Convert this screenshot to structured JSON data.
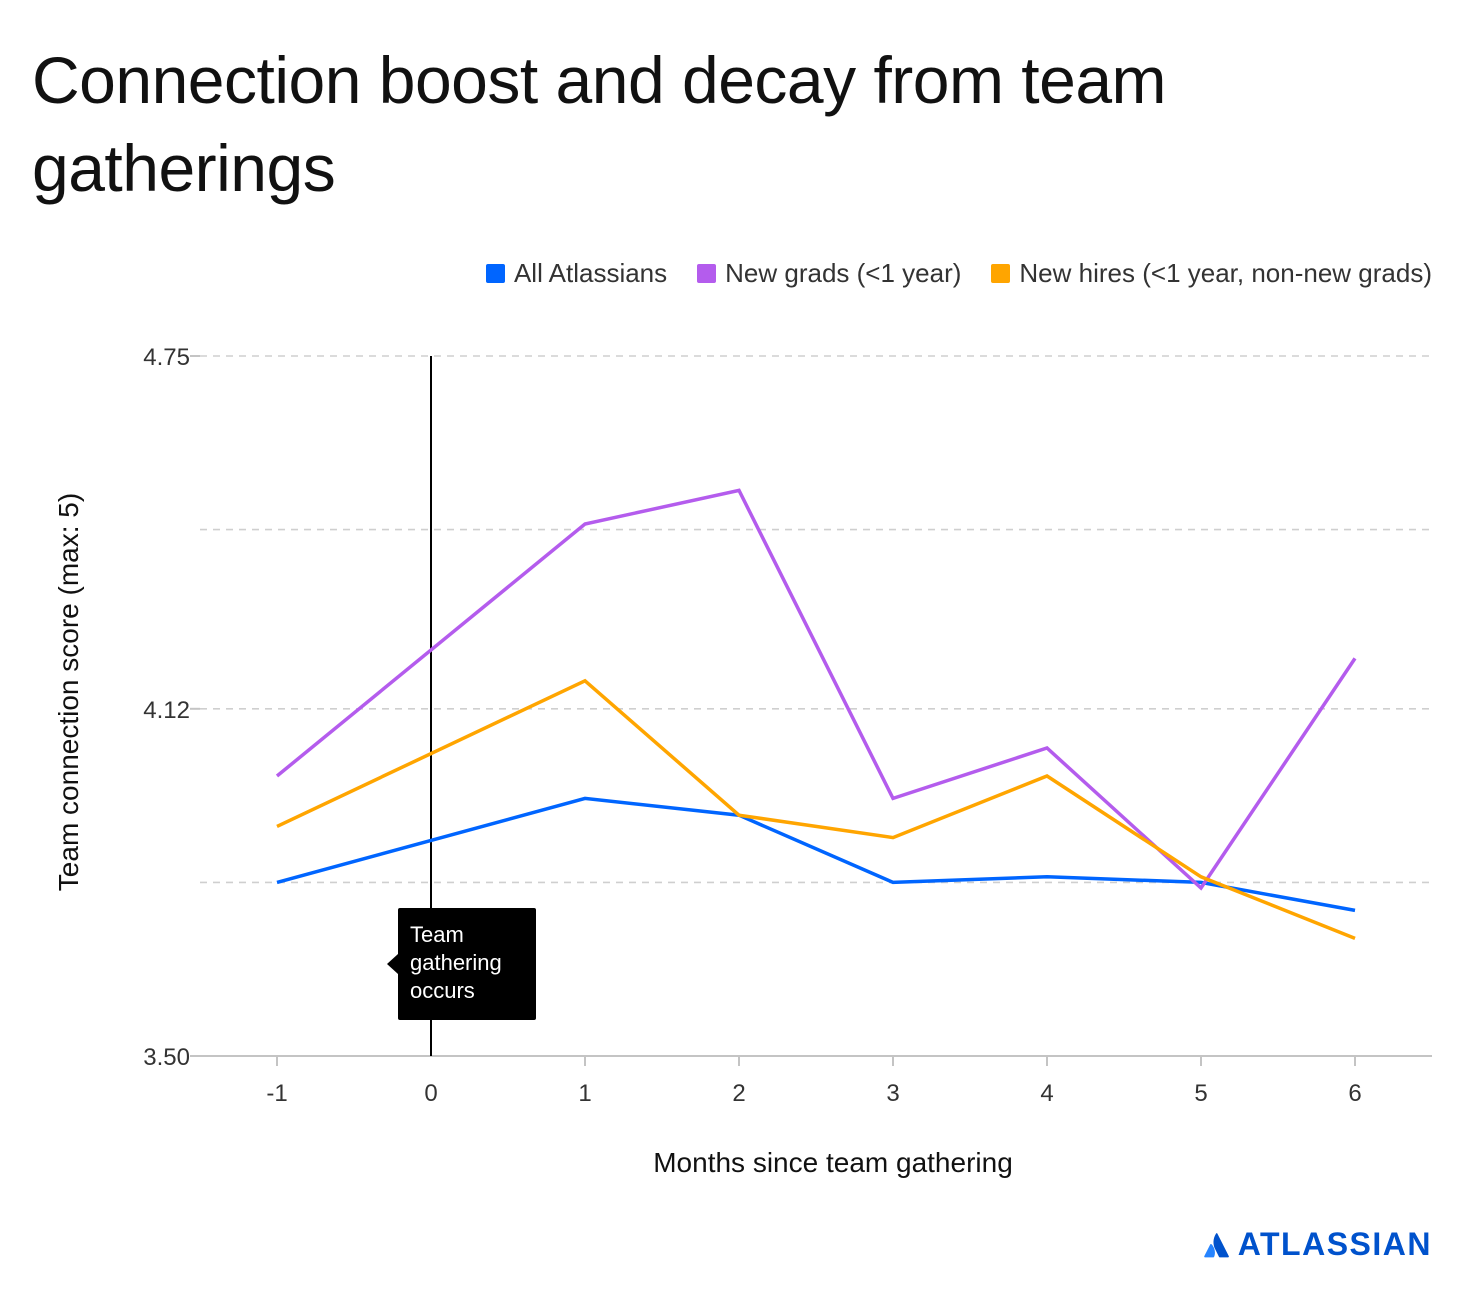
{
  "chart_data": {
    "type": "line",
    "title": "Connection boost and decay from team gatherings",
    "xlabel": "Months since team gathering",
    "ylabel": "Team connection score (max: 5)",
    "x": [
      -1,
      1,
      2,
      3,
      4,
      5,
      6
    ],
    "x_ticks": [
      "-1",
      "0",
      "1",
      "2",
      "3",
      "4",
      "5",
      "6"
    ],
    "x_tick_values": [
      -1,
      0,
      1,
      2,
      3,
      4,
      5,
      6
    ],
    "xlim": [
      -1.5,
      6.5
    ],
    "ylim": [
      3.5,
      4.75
    ],
    "y_ticks": [
      "4.75",
      "4.12",
      "3.50"
    ],
    "y_tick_values": [
      4.75,
      4.12,
      3.5
    ],
    "y_gridlines": [
      4.75,
      4.44,
      4.12,
      3.81
    ],
    "grid": true,
    "legend": "top-right",
    "series": [
      {
        "name": "All Atlassians",
        "color": "#0065ff",
        "values": [
          3.81,
          3.96,
          3.93,
          3.81,
          3.82,
          3.81,
          3.76
        ]
      },
      {
        "name": "New grads (<1 year)",
        "color": "#b45ced",
        "values": [
          4.0,
          4.45,
          4.51,
          3.96,
          4.05,
          3.8,
          4.21
        ]
      },
      {
        "name": "New hires (<1 year, non-new grads)",
        "color": "#ffa500",
        "values": [
          3.91,
          4.17,
          3.93,
          3.89,
          4.0,
          3.82,
          3.71
        ]
      }
    ],
    "annotation": {
      "x": 0,
      "text": "Team gathering occurs"
    }
  },
  "brand": {
    "name": "ATLASSIAN",
    "color": "#0052cc",
    "icon": "atlassian-logo-icon"
  }
}
